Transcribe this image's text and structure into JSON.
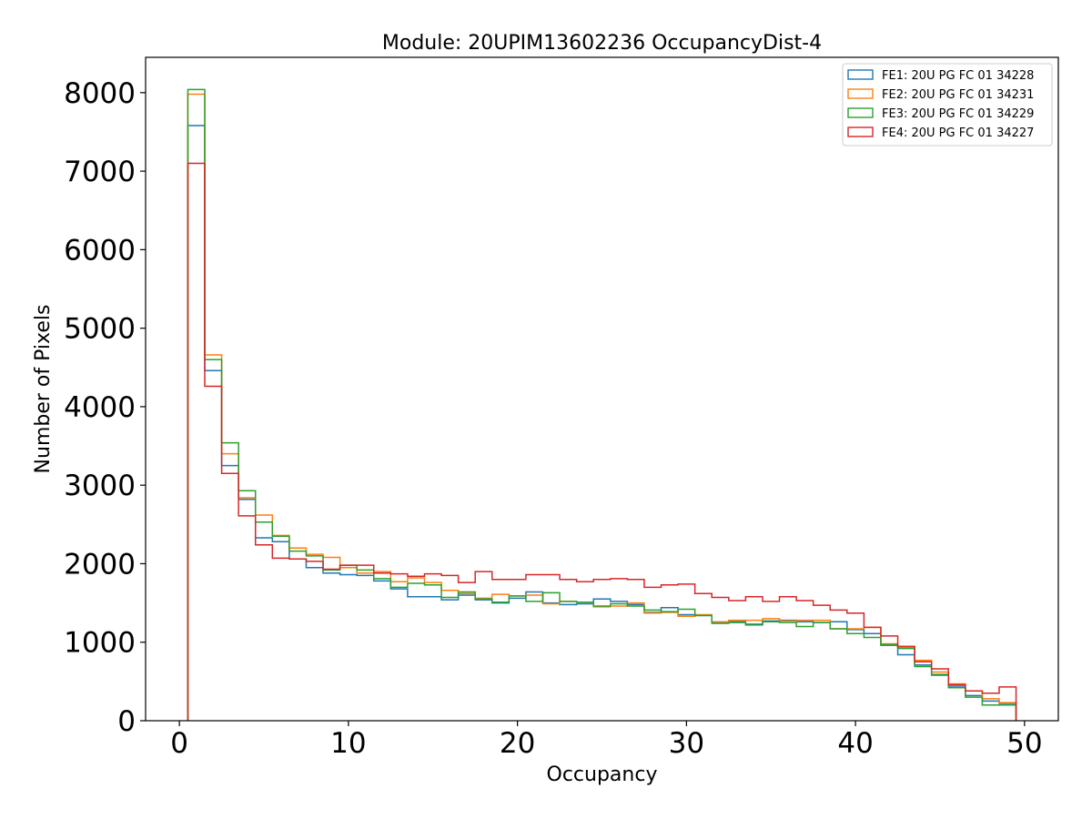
{
  "chart_data": {
    "type": "step-histogram",
    "title": "Module: 20UPIM13602236 OccupancyDist-4",
    "xlabel": "Occupancy",
    "ylabel": "Number of Pixels",
    "xlim": [
      -2,
      52
    ],
    "ylim": [
      0,
      8450
    ],
    "xticks": [
      0,
      10,
      20,
      30,
      40,
      50
    ],
    "yticks": [
      0,
      1000,
      2000,
      3000,
      4000,
      5000,
      6000,
      7000,
      8000
    ],
    "bin_edges_start": 0.5,
    "bin_width": 1,
    "legend_position": "top-right",
    "grid": false,
    "series": [
      {
        "name": "FE1: 20U PG FC 01 34228",
        "color": "#1f77b4",
        "values": [
          7580,
          4460,
          3250,
          2820,
          2330,
          2280,
          2060,
          1950,
          1880,
          1860,
          1850,
          1780,
          1680,
          1580,
          1580,
          1540,
          1600,
          1540,
          1500,
          1560,
          1640,
          1500,
          1480,
          1490,
          1550,
          1520,
          1480,
          1380,
          1440,
          1350,
          1340,
          1250,
          1260,
          1220,
          1270,
          1280,
          1260,
          1250,
          1260,
          1160,
          1110,
          960,
          840,
          710,
          580,
          440,
          320,
          250,
          220
        ]
      },
      {
        "name": "FE2: 20U PG FC 01 34231",
        "color": "#ff7f0e",
        "values": [
          7980,
          4660,
          3400,
          2840,
          2620,
          2360,
          2200,
          2120,
          2080,
          1950,
          1880,
          1900,
          1770,
          1820,
          1760,
          1660,
          1620,
          1560,
          1610,
          1590,
          1600,
          1490,
          1520,
          1510,
          1450,
          1460,
          1500,
          1370,
          1380,
          1330,
          1350,
          1260,
          1280,
          1280,
          1300,
          1270,
          1280,
          1280,
          1170,
          1170,
          1190,
          980,
          950,
          770,
          620,
          470,
          380,
          280,
          230
        ]
      },
      {
        "name": "FE3: 20U PG FC 01 34229",
        "color": "#2ca02c",
        "values": [
          8040,
          4600,
          3540,
          2930,
          2530,
          2350,
          2160,
          2100,
          1920,
          1980,
          1920,
          1810,
          1700,
          1750,
          1730,
          1570,
          1640,
          1550,
          1510,
          1590,
          1520,
          1630,
          1520,
          1510,
          1460,
          1490,
          1460,
          1410,
          1390,
          1420,
          1340,
          1240,
          1250,
          1230,
          1260,
          1250,
          1200,
          1250,
          1170,
          1110,
          1060,
          970,
          920,
          690,
          590,
          420,
          300,
          200,
          200
        ]
      },
      {
        "name": "FE4: 20U PG FC 01 34227",
        "color": "#d62728",
        "values": [
          7100,
          4260,
          3150,
          2610,
          2240,
          2070,
          2060,
          2030,
          1930,
          1980,
          1980,
          1880,
          1870,
          1840,
          1870,
          1850,
          1760,
          1900,
          1800,
          1800,
          1860,
          1860,
          1800,
          1770,
          1800,
          1810,
          1800,
          1700,
          1730,
          1740,
          1620,
          1570,
          1530,
          1580,
          1520,
          1580,
          1530,
          1470,
          1410,
          1370,
          1190,
          1080,
          940,
          750,
          660,
          460,
          380,
          350,
          430
        ]
      }
    ]
  }
}
